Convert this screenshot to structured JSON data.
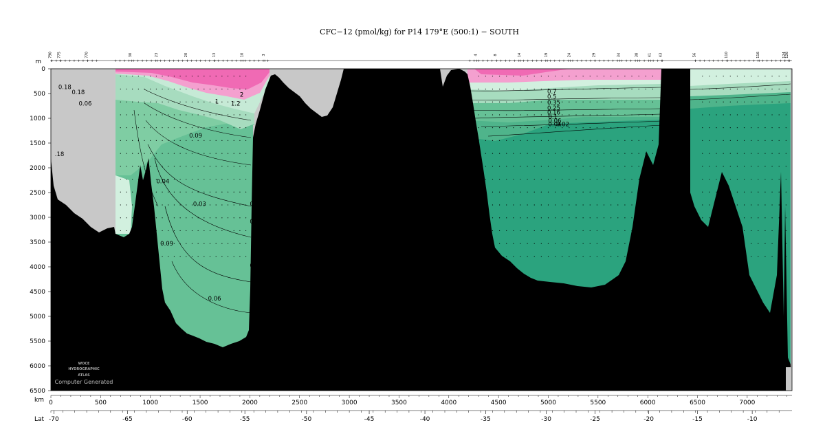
{
  "chart_data": {
    "type": "heatmap",
    "title": "CFC−12 (pmol/kg) for P14 179°E (500:1) − SOUTH",
    "depth_unit": "m",
    "distance_unit": "km",
    "lat_label": "Lat",
    "y_range": [
      0,
      6500
    ],
    "x_range": [
      0,
      7450
    ],
    "y_ticks": [
      0,
      500,
      1000,
      1500,
      2000,
      2500,
      3000,
      3500,
      4000,
      4500,
      5000,
      5500,
      6000,
      6500
    ],
    "x_ticks": [
      0,
      500,
      1000,
      1500,
      2000,
      2500,
      3000,
      3500,
      4000,
      4500,
      5000,
      5500,
      6000,
      6500,
      7000
    ],
    "lat_ticks": [
      {
        "km": 30,
        "lat": "-70"
      },
      {
        "km": 770,
        "lat": "-65"
      },
      {
        "km": 1370,
        "lat": "-60"
      },
      {
        "km": 1950,
        "lat": "-55"
      },
      {
        "km": 2570,
        "lat": "-50"
      },
      {
        "km": 3200,
        "lat": "-45"
      },
      {
        "km": 3760,
        "lat": "-40"
      },
      {
        "km": 4370,
        "lat": "-35"
      },
      {
        "km": 4980,
        "lat": "-30"
      },
      {
        "km": 5470,
        "lat": "-25"
      },
      {
        "km": 6010,
        "lat": "-20"
      },
      {
        "km": 6500,
        "lat": "-15"
      },
      {
        "km": 7050,
        "lat": "-10"
      }
    ],
    "station_labels": [
      {
        "km": 5,
        "label": "790"
      },
      {
        "km": 95,
        "label": "775"
      },
      {
        "km": 370,
        "label": "770"
      },
      {
        "km": 810,
        "label": "30"
      },
      {
        "km": 1070,
        "label": "23"
      },
      {
        "km": 1370,
        "label": "20"
      },
      {
        "km": 1650,
        "label": "13"
      },
      {
        "km": 1930,
        "label": "10"
      },
      {
        "km": 2150,
        "label": "3"
      },
      {
        "km": 4280,
        "label": "4"
      },
      {
        "km": 4480,
        "label": "8"
      },
      {
        "km": 4720,
        "label": "14"
      },
      {
        "km": 4990,
        "label": "19"
      },
      {
        "km": 5220,
        "label": "24"
      },
      {
        "km": 5470,
        "label": "29"
      },
      {
        "km": 5720,
        "label": "34"
      },
      {
        "km": 5900,
        "label": "38"
      },
      {
        "km": 6030,
        "label": "41"
      },
      {
        "km": 6140,
        "label": "43"
      },
      {
        "km": 6480,
        "label": "56"
      },
      {
        "km": 6800,
        "label": "110"
      },
      {
        "km": 7120,
        "label": "116"
      },
      {
        "km": 7380,
        "label": "124"
      },
      {
        "km": 7410,
        "label": "126"
      }
    ],
    "contour_labels": [
      {
        "km": 75,
        "depth": 370,
        "text": "0.18"
      },
      {
        "km": 210,
        "depth": 470,
        "text": "0.18"
      },
      {
        "km": 280,
        "depth": 700,
        "text": "0.06"
      },
      {
        "km": 1650,
        "depth": 660,
        "text": "1"
      },
      {
        "km": 1810,
        "depth": 700,
        "text": "1.2"
      },
      {
        "km": 1900,
        "depth": 520,
        "text": "2"
      },
      {
        "km": 1390,
        "depth": 1350,
        "text": "0.09"
      },
      {
        "km": 40,
        "depth": 1720,
        "text": ".18"
      },
      {
        "km": 1060,
        "depth": 2270,
        "text": "0.04"
      },
      {
        "km": 1430,
        "depth": 2730,
        "text": "0.03"
      },
      {
        "km": 2000,
        "depth": 2730,
        "text": "0."
      },
      {
        "km": 2000,
        "depth": 3080,
        "text": "0"
      },
      {
        "km": 1100,
        "depth": 3530,
        "text": "0.09"
      },
      {
        "km": 2000,
        "depth": 3970,
        "text": "0."
      },
      {
        "km": 1580,
        "depth": 4640,
        "text": "0.06"
      },
      {
        "km": 4990,
        "depth": 460,
        "text": "0.7"
      },
      {
        "km": 4990,
        "depth": 560,
        "text": "0.5"
      },
      {
        "km": 4990,
        "depth": 680,
        "text": "0.35"
      },
      {
        "km": 4990,
        "depth": 790,
        "text": "0.25"
      },
      {
        "km": 4990,
        "depth": 880,
        "text": "0.16"
      },
      {
        "km": 5000,
        "depth": 970,
        "text": "0.1"
      },
      {
        "km": 5000,
        "depth": 1050,
        "text": "0.06"
      },
      {
        "km": 5000,
        "depth": 1120,
        "text": "0.04"
      },
      {
        "km": 5080,
        "depth": 1120,
        "text": "0.02"
      }
    ]
  },
  "watermark": {
    "line1": "WOCE",
    "line2": "HYDROGRAPHIC",
    "line3": "ATLAS",
    "line4": "Computer Generated"
  },
  "colors": {
    "high": "#f06ab4",
    "mid_high": "#f4a0cf",
    "light": "#d2f0df",
    "mid": "#66c196",
    "low": "#2ba37e",
    "bathymetry": "#000000",
    "no_data": "#c8c8c8",
    "station_mark": "#22aa22"
  }
}
